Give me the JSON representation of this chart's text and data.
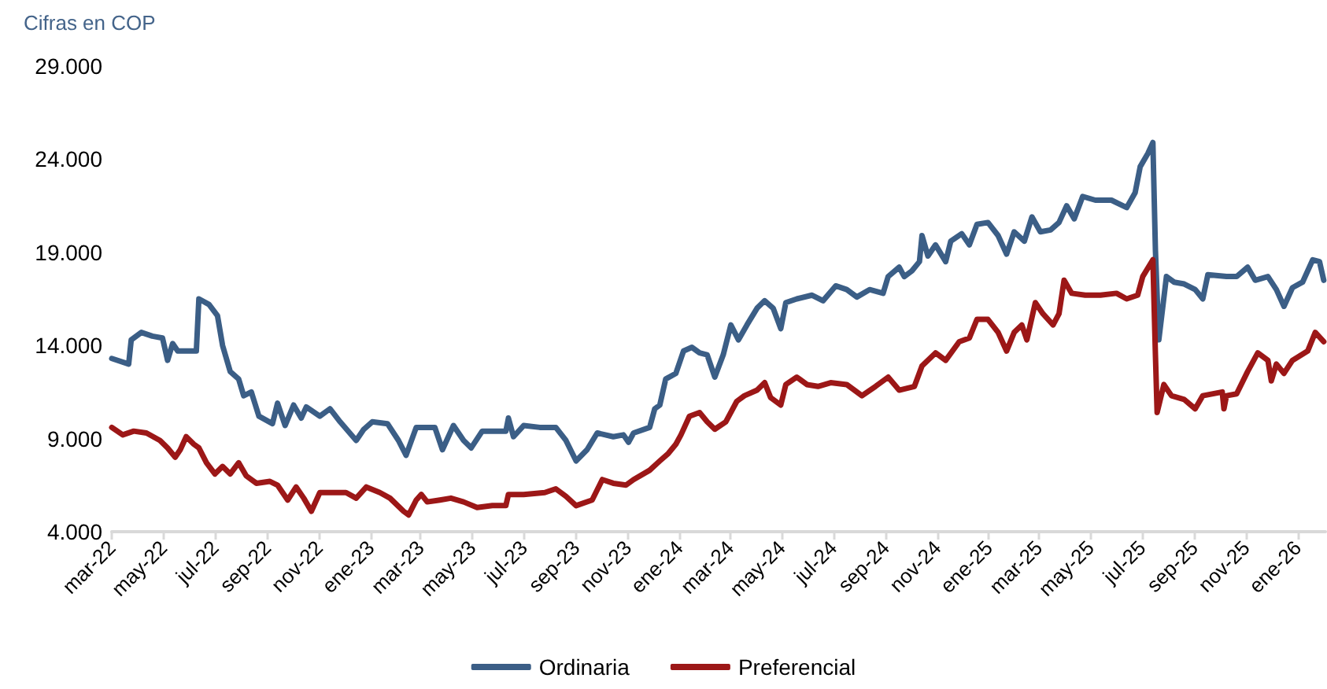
{
  "chart_data": {
    "type": "line",
    "subtitle": "Cifras en COP",
    "legend": "bottom",
    "xlim": [
      "2022-03-01",
      "2026-02-03"
    ],
    "xticks": [
      {
        "value": "2022-03-01",
        "label": "mar-22"
      },
      {
        "value": "2022-05-01",
        "label": "may-22"
      },
      {
        "value": "2022-07-01",
        "label": "jul-22"
      },
      {
        "value": "2022-09-01",
        "label": "sep-22"
      },
      {
        "value": "2022-11-01",
        "label": "nov-22"
      },
      {
        "value": "2023-01-01",
        "label": "ene-23"
      },
      {
        "value": "2023-03-01",
        "label": "mar-23"
      },
      {
        "value": "2023-05-01",
        "label": "may-23"
      },
      {
        "value": "2023-07-01",
        "label": "jul-23"
      },
      {
        "value": "2023-09-01",
        "label": "sep-23"
      },
      {
        "value": "2023-11-01",
        "label": "nov-23"
      },
      {
        "value": "2024-01-01",
        "label": "ene-24"
      },
      {
        "value": "2024-03-01",
        "label": "mar-24"
      },
      {
        "value": "2024-05-01",
        "label": "may-24"
      },
      {
        "value": "2024-07-01",
        "label": "jul-24"
      },
      {
        "value": "2024-09-01",
        "label": "sep-24"
      },
      {
        "value": "2024-11-01",
        "label": "nov-24"
      },
      {
        "value": "2025-01-01",
        "label": "ene-25"
      },
      {
        "value": "2025-03-01",
        "label": "mar-25"
      },
      {
        "value": "2025-05-01",
        "label": "may-25"
      },
      {
        "value": "2025-07-01",
        "label": "jul-25"
      },
      {
        "value": "2025-09-01",
        "label": "sep-25"
      },
      {
        "value": "2025-11-01",
        "label": "nov-25"
      },
      {
        "value": "2026-01-01",
        "label": "ene-26"
      }
    ],
    "ylim": [
      4000,
      29000
    ],
    "yticks": [
      {
        "value": 4000,
        "label": "4.000"
      },
      {
        "value": 9000,
        "label": "9.000"
      },
      {
        "value": 14000,
        "label": "14.000"
      },
      {
        "value": 19000,
        "label": "19.000"
      },
      {
        "value": 24000,
        "label": "24.000"
      },
      {
        "value": 29000,
        "label": "29.000"
      }
    ],
    "series": [
      {
        "name": "Ordinaria",
        "color": "#3b5e86",
        "x": [
          "2022-03-01",
          "2022-03-21",
          "2022-03-24",
          "2022-04-05",
          "2022-04-18",
          "2022-04-30",
          "2022-05-06",
          "2022-05-12",
          "2022-05-18",
          "2022-06-09",
          "2022-06-12",
          "2022-06-24",
          "2022-07-04",
          "2022-07-10",
          "2022-07-19",
          "2022-07-29",
          "2022-08-04",
          "2022-08-13",
          "2022-08-22",
          "2022-09-07",
          "2022-09-13",
          "2022-09-22",
          "2022-10-02",
          "2022-10-11",
          "2022-10-17",
          "2022-11-02",
          "2022-11-14",
          "2022-11-26",
          "2022-12-15",
          "2022-12-24",
          "2023-01-03",
          "2023-01-21",
          "2023-02-03",
          "2023-02-12",
          "2023-02-24",
          "2023-03-18",
          "2023-03-27",
          "2023-04-09",
          "2023-04-21",
          "2023-04-30",
          "2023-05-13",
          "2023-06-10",
          "2023-06-13",
          "2023-06-19",
          "2023-07-01",
          "2023-07-20",
          "2023-08-08",
          "2023-08-20",
          "2023-09-01",
          "2023-09-14",
          "2023-09-26",
          "2023-10-15",
          "2023-10-27",
          "2023-11-02",
          "2023-11-08",
          "2023-11-27",
          "2023-12-03",
          "2023-12-09",
          "2023-12-16",
          "2023-12-28",
          "2024-01-06",
          "2024-01-16",
          "2024-01-25",
          "2024-02-03",
          "2024-02-12",
          "2024-02-22",
          "2024-03-02",
          "2024-03-11",
          "2024-03-21",
          "2024-04-02",
          "2024-04-11",
          "2024-04-21",
          "2024-04-30",
          "2024-05-06",
          "2024-05-19",
          "2024-06-06",
          "2024-06-19",
          "2024-07-04",
          "2024-07-17",
          "2024-07-29",
          "2024-08-13",
          "2024-08-29",
          "2024-09-04",
          "2024-09-17",
          "2024-09-23",
          "2024-10-02",
          "2024-10-11",
          "2024-10-14",
          "2024-10-21",
          "2024-10-30",
          "2024-11-11",
          "2024-11-17",
          "2024-11-30",
          "2024-12-09",
          "2024-12-18",
          "2024-12-31",
          "2025-01-12",
          "2025-01-22",
          "2025-01-31",
          "2025-02-12",
          "2025-02-21",
          "2025-03-03",
          "2025-03-15",
          "2025-03-25",
          "2025-04-03",
          "2025-04-12",
          "2025-04-22",
          "2025-05-07",
          "2025-05-26",
          "2025-06-13",
          "2025-06-23",
          "2025-06-29",
          "2025-07-08",
          "2025-07-14",
          "2025-07-17",
          "2025-07-21",
          "2025-07-30",
          "2025-08-08",
          "2025-08-20",
          "2025-09-02",
          "2025-09-11",
          "2025-09-17",
          "2025-10-09",
          "2025-10-21",
          "2025-11-03",
          "2025-11-12",
          "2025-11-27",
          "2025-12-07",
          "2025-12-16",
          "2025-12-26",
          "2026-01-07",
          "2026-01-19",
          "2026-01-27",
          "2026-02-01"
        ],
        "values": [
          13300,
          13000,
          14300,
          14700,
          14500,
          14400,
          13200,
          14100,
          13700,
          13700,
          16500,
          16200,
          15600,
          14000,
          12600,
          12200,
          11300,
          11500,
          10200,
          9800,
          10900,
          9700,
          10800,
          10100,
          10700,
          10200,
          10600,
          9900,
          8900,
          9500,
          9900,
          9800,
          8900,
          8100,
          9600,
          9600,
          8400,
          9700,
          8900,
          8500,
          9400,
          9400,
          10100,
          9100,
          9700,
          9600,
          9600,
          8900,
          7800,
          8400,
          9300,
          9100,
          9200,
          8800,
          9300,
          9600,
          10600,
          10800,
          12200,
          12500,
          13700,
          13900,
          13600,
          13500,
          12300,
          13500,
          15100,
          14300,
          15100,
          16000,
          16400,
          16000,
          14900,
          16300,
          16500,
          16700,
          16400,
          17200,
          17000,
          16600,
          17000,
          16800,
          17700,
          18200,
          17700,
          18000,
          18500,
          19900,
          18800,
          19400,
          18500,
          19600,
          20000,
          19400,
          20500,
          20600,
          19900,
          18900,
          20100,
          19600,
          20900,
          20100,
          20200,
          20600,
          21500,
          20800,
          22000,
          21800,
          21800,
          21400,
          22200,
          23600,
          24300,
          24900,
          19100,
          14300,
          17700,
          17400,
          17300,
          17000,
          16500,
          17800,
          17700,
          17700,
          18200,
          17500,
          17700,
          17000,
          16100,
          17100,
          17400,
          18600,
          18500,
          17500
        ]
      },
      {
        "name": "Preferencial",
        "color": "#9c1717",
        "x": [
          "2022-03-01",
          "2022-03-14",
          "2022-03-27",
          "2022-04-11",
          "2022-04-27",
          "2022-05-06",
          "2022-05-15",
          "2022-05-21",
          "2022-05-28",
          "2022-06-06",
          "2022-06-12",
          "2022-06-21",
          "2022-07-01",
          "2022-07-10",
          "2022-07-19",
          "2022-07-29",
          "2022-08-07",
          "2022-08-19",
          "2022-09-04",
          "2022-09-13",
          "2022-09-25",
          "2022-10-05",
          "2022-10-14",
          "2022-10-23",
          "2022-11-02",
          "2022-11-20",
          "2022-12-03",
          "2022-12-15",
          "2022-12-27",
          "2023-01-12",
          "2023-01-24",
          "2023-02-09",
          "2023-02-15",
          "2023-02-24",
          "2023-03-02",
          "2023-03-09",
          "2023-03-24",
          "2023-04-06",
          "2023-04-21",
          "2023-05-07",
          "2023-05-25",
          "2023-06-10",
          "2023-06-13",
          "2023-07-01",
          "2023-07-26",
          "2023-08-08",
          "2023-08-20",
          "2023-09-01",
          "2023-09-20",
          "2023-10-02",
          "2023-10-15",
          "2023-10-30",
          "2023-11-08",
          "2023-11-27",
          "2023-12-09",
          "2023-12-19",
          "2023-12-28",
          "2024-01-03",
          "2024-01-13",
          "2024-01-25",
          "2024-02-03",
          "2024-02-12",
          "2024-02-25",
          "2024-03-09",
          "2024-03-18",
          "2024-04-02",
          "2024-04-11",
          "2024-04-18",
          "2024-04-30",
          "2024-05-06",
          "2024-05-19",
          "2024-05-31",
          "2024-06-13",
          "2024-06-28",
          "2024-07-17",
          "2024-08-04",
          "2024-08-20",
          "2024-09-04",
          "2024-09-17",
          "2024-10-05",
          "2024-10-14",
          "2024-10-30",
          "2024-11-11",
          "2024-11-27",
          "2024-12-09",
          "2024-12-18",
          "2024-12-31",
          "2025-01-12",
          "2025-01-22",
          "2025-01-31",
          "2025-02-09",
          "2025-02-15",
          "2025-02-25",
          "2025-03-06",
          "2025-03-18",
          "2025-03-25",
          "2025-03-31",
          "2025-04-09",
          "2025-04-25",
          "2025-05-13",
          "2025-06-01",
          "2025-06-13",
          "2025-06-26",
          "2025-07-02",
          "2025-07-14",
          "2025-07-17",
          "2025-07-19",
          "2025-07-27",
          "2025-08-05",
          "2025-08-20",
          "2025-09-02",
          "2025-09-11",
          "2025-10-04",
          "2025-10-06",
          "2025-10-09",
          "2025-10-21",
          "2025-11-03",
          "2025-11-15",
          "2025-11-27",
          "2025-12-01",
          "2025-12-07",
          "2025-12-16",
          "2025-12-26",
          "2026-01-13",
          "2026-01-22",
          "2026-02-01"
        ],
        "values": [
          9600,
          9200,
          9400,
          9300,
          8900,
          8500,
          8000,
          8400,
          9100,
          8700,
          8500,
          7700,
          7100,
          7500,
          7100,
          7700,
          7000,
          6600,
          6700,
          6500,
          5700,
          6400,
          5800,
          5100,
          6100,
          6100,
          6100,
          5800,
          6400,
          6100,
          5800,
          5100,
          4900,
          5700,
          6000,
          5600,
          5700,
          5800,
          5600,
          5300,
          5400,
          5400,
          6000,
          6000,
          6100,
          6300,
          5900,
          5400,
          5700,
          6800,
          6600,
          6500,
          6800,
          7300,
          7800,
          8200,
          8700,
          9200,
          10200,
          10400,
          9900,
          9500,
          9900,
          11000,
          11300,
          11600,
          12000,
          11200,
          10800,
          11900,
          12300,
          11900,
          11800,
          12000,
          11900,
          11300,
          11800,
          12300,
          11600,
          11800,
          12900,
          13600,
          13200,
          14200,
          14400,
          15400,
          15400,
          14700,
          13700,
          14700,
          15100,
          14300,
          16300,
          15700,
          15100,
          15700,
          17500,
          16800,
          16700,
          16700,
          16800,
          16500,
          16700,
          17700,
          18600,
          13500,
          10400,
          11900,
          11300,
          11100,
          10600,
          11300,
          11500,
          10600,
          11300,
          11400,
          12600,
          13600,
          13200,
          12100,
          13000,
          12500,
          13200,
          13700,
          14700,
          14200
        ]
      }
    ]
  }
}
